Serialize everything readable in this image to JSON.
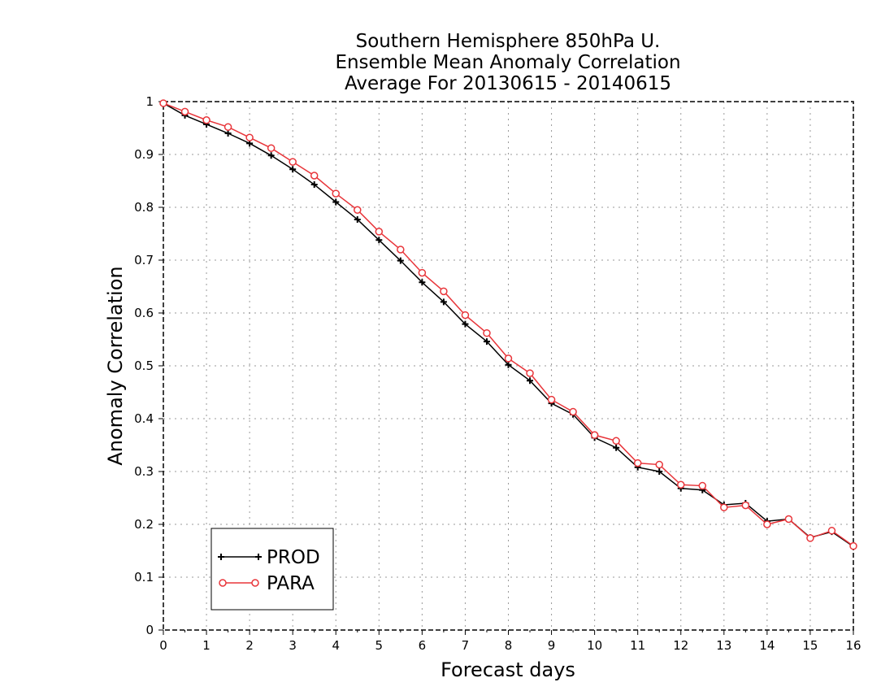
{
  "chart_data": {
    "type": "line",
    "title": [
      "Southern Hemisphere 850hPa U.",
      "Ensemble Mean Anomaly Correlation",
      "Average For 20130615 - 20140615"
    ],
    "xlabel": "Forecast days",
    "ylabel": "Anomaly Correlation",
    "xlim": [
      0,
      16
    ],
    "ylim": [
      0,
      1
    ],
    "x_ticks": [
      "0",
      "1",
      "2",
      "3",
      "4",
      "5",
      "6",
      "7",
      "8",
      "9",
      "10",
      "11",
      "12",
      "13",
      "14",
      "15",
      "16"
    ],
    "y_ticks": [
      "0",
      "0.1",
      "0.2",
      "0.3",
      "0.4",
      "0.5",
      "0.6",
      "0.7",
      "0.8",
      "0.9",
      "1"
    ],
    "grid": true,
    "legend_position": "bottom-left",
    "x": [
      0,
      0.5,
      1,
      1.5,
      2,
      2.5,
      3,
      3.5,
      4,
      4.5,
      5,
      5.5,
      6,
      6.5,
      7,
      7.5,
      8,
      8.5,
      9,
      9.5,
      10,
      10.5,
      11,
      11.5,
      12,
      12.5,
      13,
      13.5,
      14,
      14.5,
      15,
      15.5,
      16
    ],
    "series": [
      {
        "name": "PROD",
        "color": "#000000",
        "marker": "plus",
        "values": [
          0.997,
          0.974,
          0.957,
          0.94,
          0.921,
          0.898,
          0.872,
          0.843,
          0.81,
          0.777,
          0.738,
          0.699,
          0.658,
          0.621,
          0.579,
          0.546,
          0.502,
          0.472,
          0.429,
          0.408,
          0.364,
          0.345,
          0.308,
          0.3,
          0.268,
          0.265,
          0.237,
          0.24,
          0.206,
          0.21,
          0.175,
          0.186,
          0.158
        ]
      },
      {
        "name": "PARA",
        "color": "#e8353a",
        "marker": "circle",
        "values": [
          0.997,
          0.981,
          0.965,
          0.952,
          0.932,
          0.912,
          0.886,
          0.86,
          0.826,
          0.795,
          0.754,
          0.72,
          0.676,
          0.641,
          0.596,
          0.562,
          0.514,
          0.486,
          0.436,
          0.413,
          0.369,
          0.358,
          0.316,
          0.313,
          0.275,
          0.273,
          0.232,
          0.236,
          0.2,
          0.21,
          0.174,
          0.188,
          0.159
        ]
      }
    ]
  }
}
